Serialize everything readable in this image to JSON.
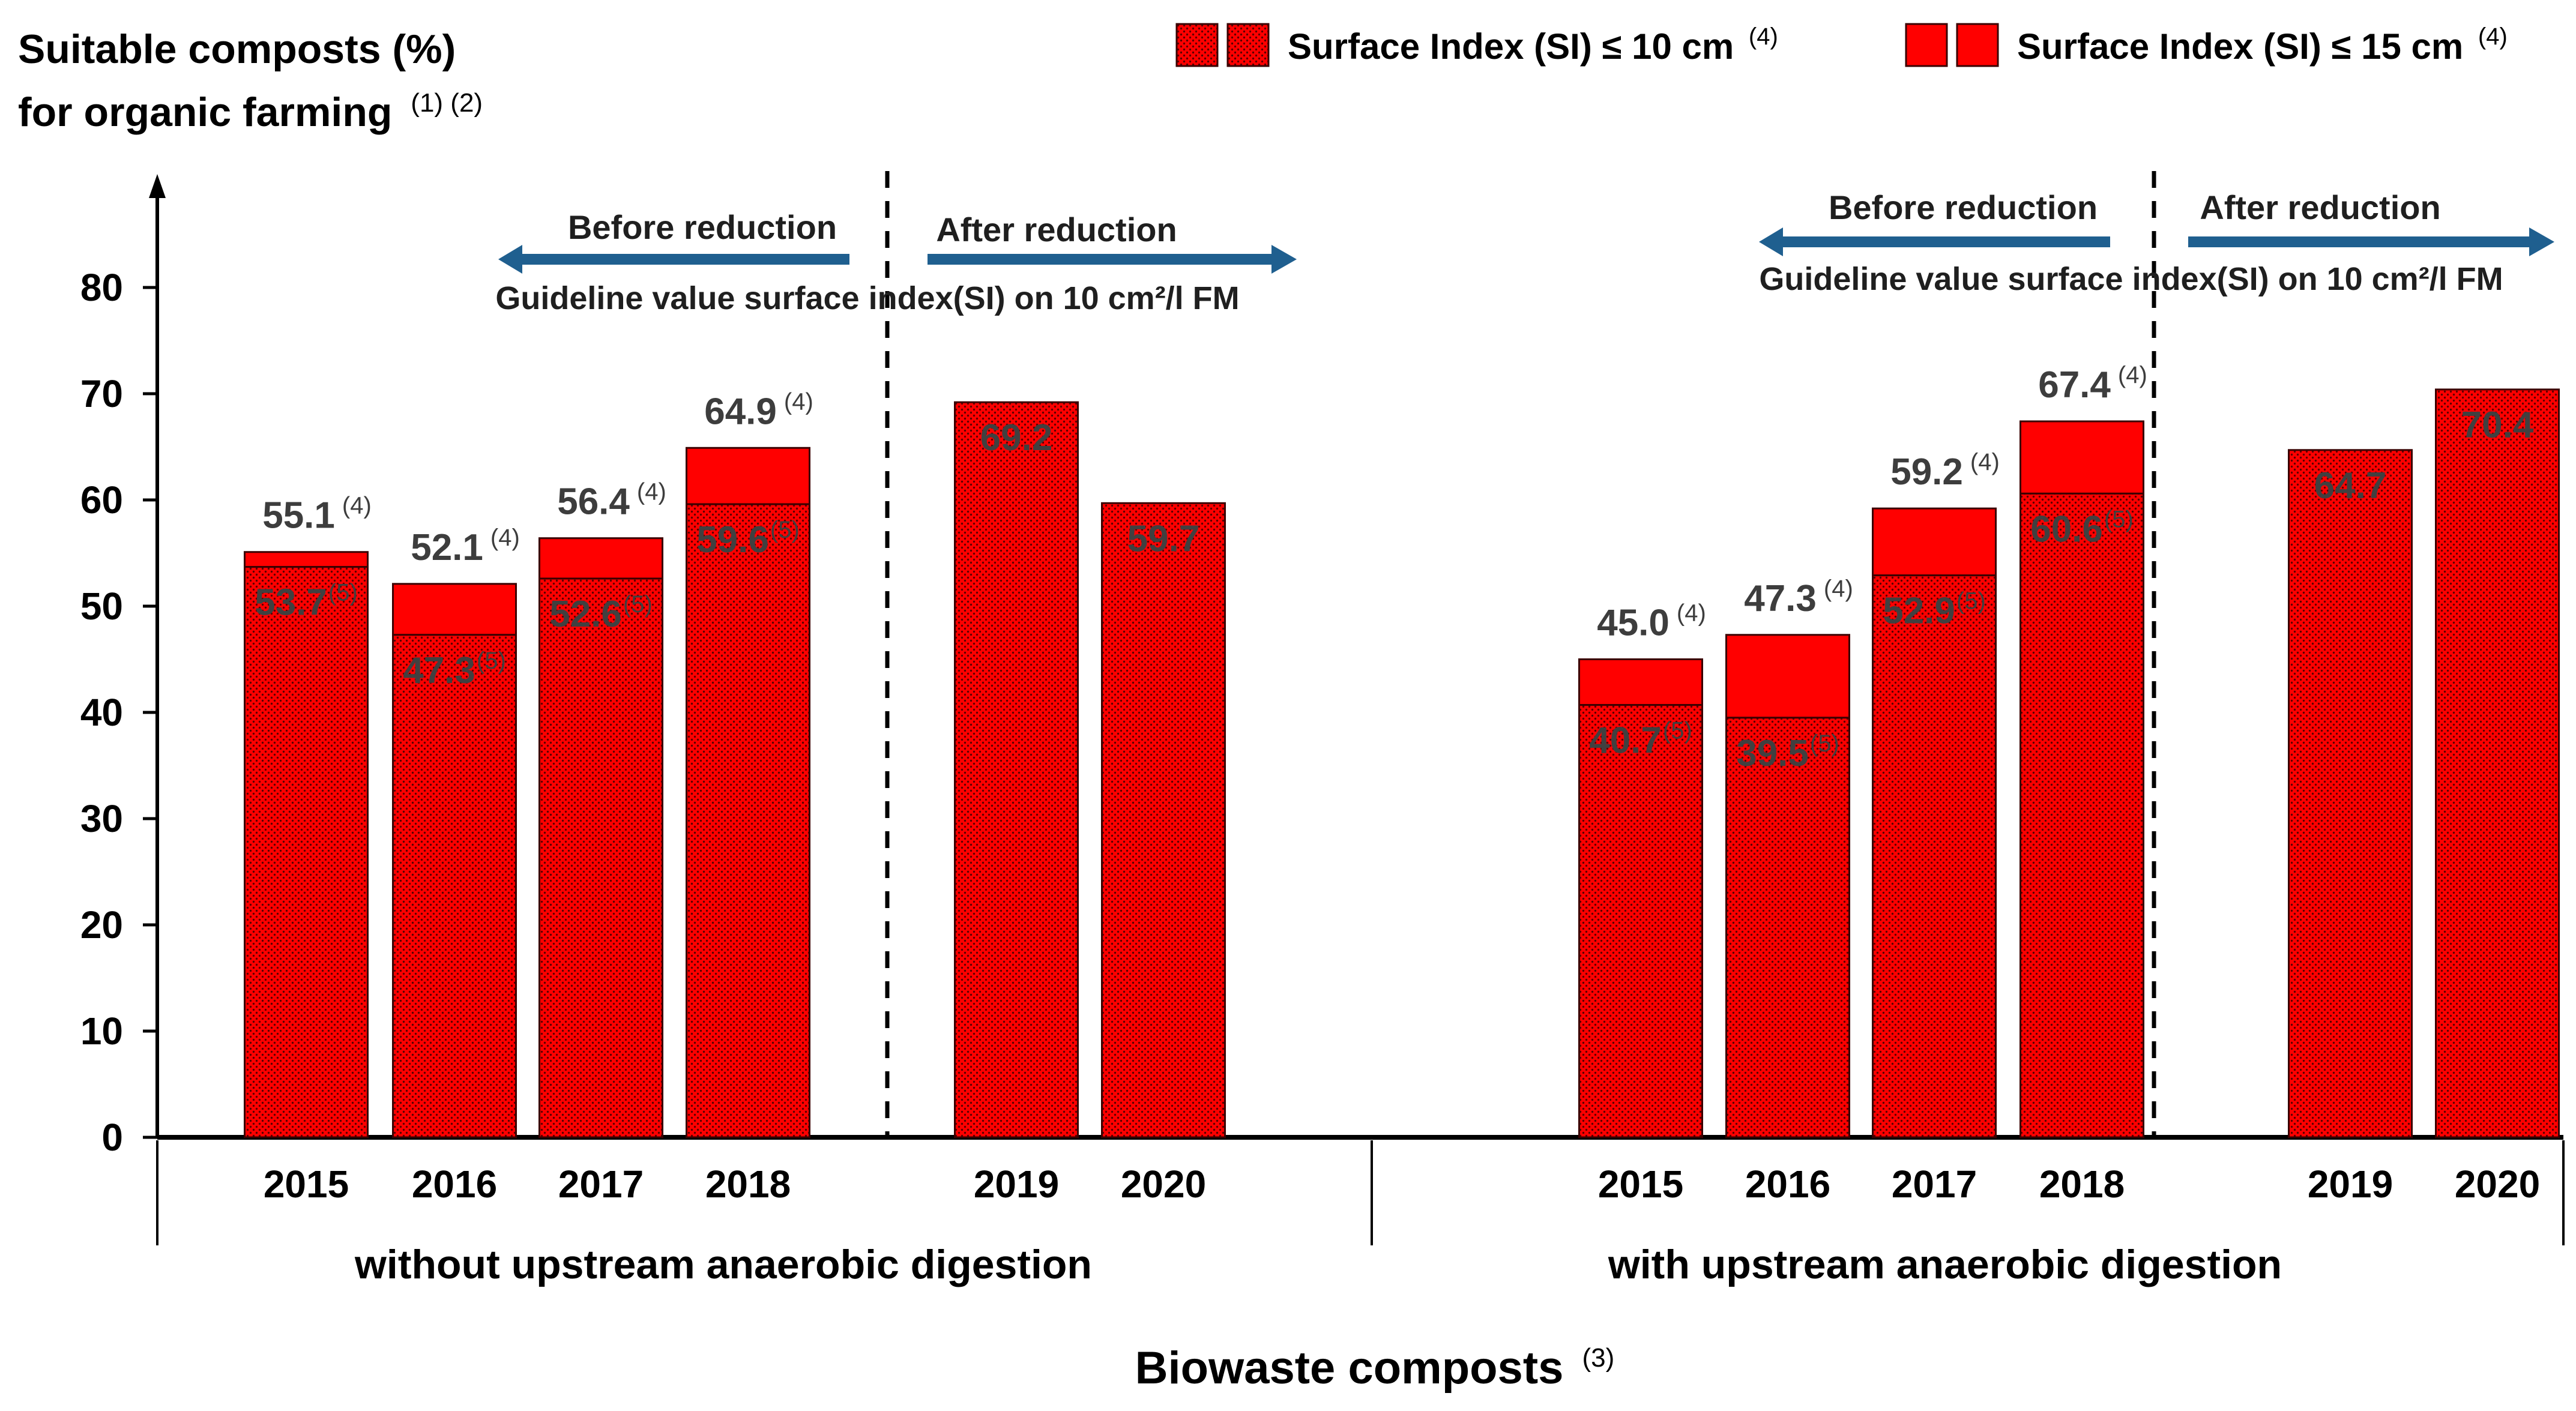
{
  "chart_data": {
    "type": "bar",
    "stacked": true,
    "y_axis": {
      "title": "Suitable composts (%)",
      "title_line2": "for organic farming",
      "title_line2_sup": "(1) (2)",
      "ticks": [
        "0",
        "10",
        "20",
        "30",
        "40",
        "50",
        "60",
        "70",
        "80"
      ],
      "ylim": [
        0,
        90
      ]
    },
    "x_title": "Biowaste composts",
    "x_title_sup": "(3)",
    "legend": [
      {
        "label": "Surface Index (SI) ≤ 10 cm",
        "sup": "(4)",
        "pattern": "dotted"
      },
      {
        "label": "Surface Index (SI) ≤ 15 cm",
        "sup": "(4)",
        "pattern": "solid"
      }
    ],
    "groups": [
      {
        "label": "without upstream anaerobic digestion",
        "before_label": "Before reduction",
        "after_label": "After reduction",
        "guideline": "Guideline value surface index(SI) on 10 cm²/l FM",
        "bars": [
          {
            "year": "2015",
            "si10": 53.7,
            "si15": 55.1,
            "si10_label": "53.7",
            "si10_sup": "(5)",
            "si15_label": "55.1",
            "si15_sup": "(4)"
          },
          {
            "year": "2016",
            "si10": 47.3,
            "si15": 52.1,
            "si10_label": "47.3",
            "si10_sup": "(5)",
            "si15_label": "52.1",
            "si15_sup": "(4)"
          },
          {
            "year": "2017",
            "si10": 52.6,
            "si15": 56.4,
            "si10_label": "52.6",
            "si10_sup": "(5)",
            "si15_label": "56.4",
            "si15_sup": "(4)"
          },
          {
            "year": "2018",
            "si10": 59.6,
            "si15": 64.9,
            "si10_label": "59.6",
            "si10_sup": "(5)",
            "si15_label": "64.9",
            "si15_sup": "(4)"
          },
          {
            "year": "2019",
            "si10": 69.2,
            "si10_label": "69.2"
          },
          {
            "year": "2020",
            "si10": 59.7,
            "si10_label": "59.7"
          }
        ]
      },
      {
        "label": "with upstream anaerobic digestion",
        "before_label": "Before reduction",
        "after_label": "After reduction",
        "guideline": "Guideline value surface index(SI) on 10 cm²/l FM",
        "bars": [
          {
            "year": "2015",
            "si10": 40.7,
            "si15": 45.0,
            "si10_label": "40.7",
            "si10_sup": "(5)",
            "si15_label": "45.0",
            "si15_sup": "(4)"
          },
          {
            "year": "2016",
            "si10": 39.5,
            "si15": 47.3,
            "si10_label": "39.5",
            "si10_sup": "(5)",
            "si15_label": "47.3",
            "si15_sup": "(4)"
          },
          {
            "year": "2017",
            "si10": 52.9,
            "si15": 59.2,
            "si10_label": "52.9",
            "si10_sup": "(5)",
            "si15_label": "59.2",
            "si15_sup": "(4)"
          },
          {
            "year": "2018",
            "si10": 60.6,
            "si15": 67.4,
            "si10_label": "60.6",
            "si10_sup": "(5)",
            "si15_label": "67.4",
            "si15_sup": "(4)"
          },
          {
            "year": "2019",
            "si10": 64.7,
            "si10_label": "64.7"
          },
          {
            "year": "2020",
            "si10": 70.4,
            "si10_label": "70.4"
          }
        ]
      }
    ],
    "colors": {
      "bar_fill": "#ff0000",
      "bar_dots": "#5a0000",
      "bar_stroke": "#3a0000",
      "arrow": "#1f5f8f",
      "axis": "#000000"
    }
  }
}
